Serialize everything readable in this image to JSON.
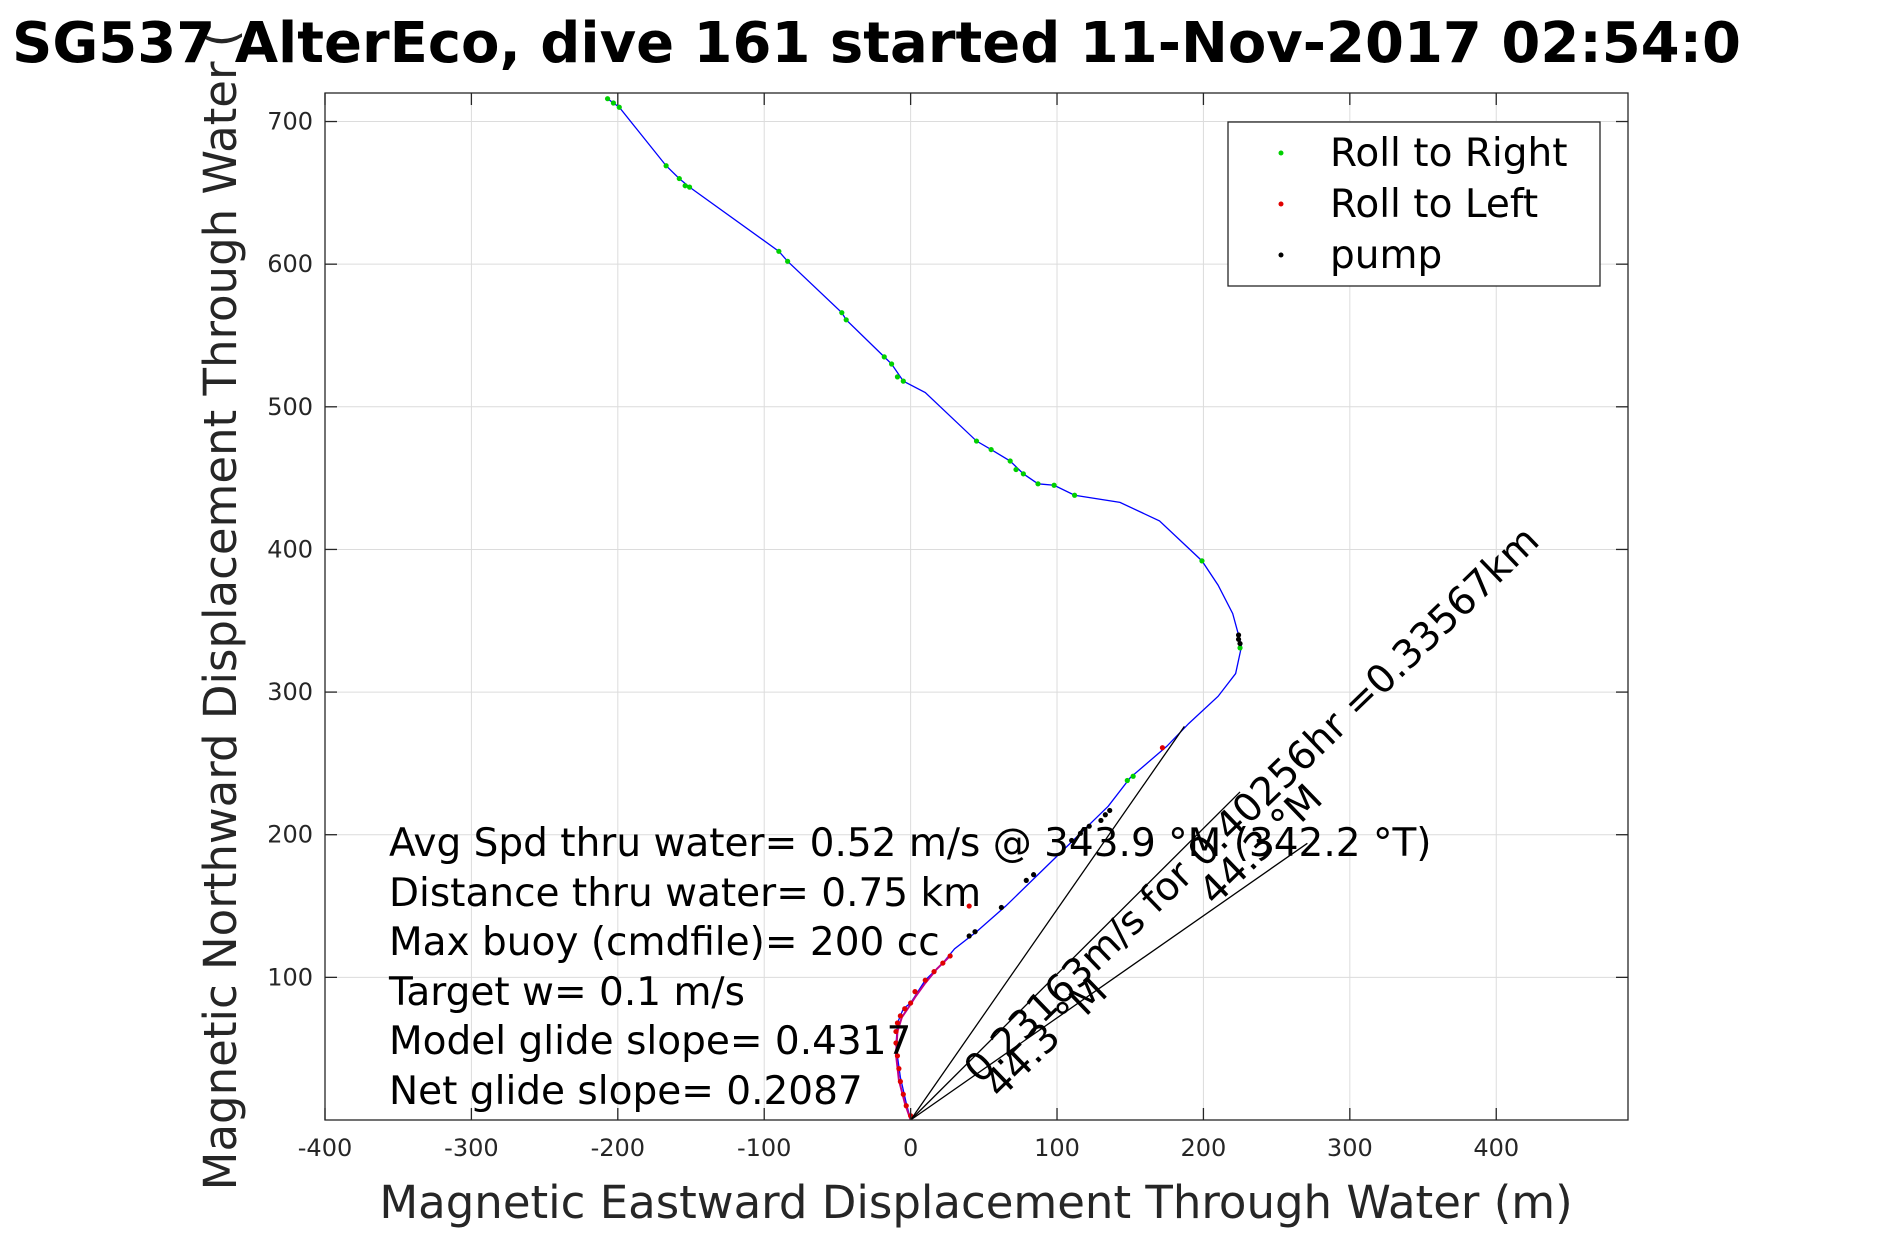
{
  "chart_data": {
    "type": "line",
    "title": "SG537 AlterEco, dive 161 started 11-Nov-2017 02:54:0",
    "xlabel": "Magnetic Eastward Displacement Through Water (m)",
    "ylabel": "Magnetic Northward Displacement Through Water (",
    "xlim": [
      -400,
      490
    ],
    "ylim": [
      0,
      720
    ],
    "xticks": [
      -400,
      -300,
      -200,
      -100,
      0,
      100,
      200,
      300,
      400
    ],
    "yticks": [
      100,
      200,
      300,
      400,
      500,
      600,
      700
    ],
    "grid": true,
    "legend_position": "top-right",
    "colors": {
      "track": "#0000ff",
      "roll_right": "#00d000",
      "roll_left": "#e00000",
      "pump": "#000000",
      "magenta": "#c0008a",
      "vectors": "#000000"
    },
    "series": [
      {
        "name": "Roll to Right",
        "x": [
          -207,
          -203,
          -199,
          -167,
          -158,
          -154,
          -151,
          -90,
          -84,
          -47,
          -44,
          -18,
          -13,
          -9,
          -5,
          45,
          55,
          68,
          72,
          77,
          87,
          98,
          112,
          148,
          152,
          199,
          225
        ],
        "y": [
          716,
          713,
          710,
          669,
          660,
          655,
          654,
          609,
          602,
          566,
          561,
          535,
          530,
          521,
          518,
          476,
          470,
          462,
          456,
          453,
          446,
          445,
          438,
          238,
          241,
          392,
          331
        ]
      },
      {
        "name": "Roll to Left",
        "x": [
          0,
          -3,
          -5,
          -7,
          -8,
          -9,
          -10,
          -10,
          -9,
          -7,
          -4,
          0,
          3,
          10,
          16,
          22,
          27,
          172,
          40
        ],
        "y": [
          3,
          10,
          18,
          27,
          36,
          45,
          54,
          62,
          68,
          73,
          78,
          82,
          90,
          98,
          104,
          110,
          115,
          261,
          150
        ]
      },
      {
        "name": "pump",
        "x": [
          224,
          224,
          225,
          130,
          133,
          136,
          122,
          116,
          110,
          84,
          79,
          44,
          40,
          62
        ],
        "y": [
          340,
          337,
          334,
          210,
          214,
          217,
          206,
          201,
          196,
          172,
          168,
          132,
          129,
          149
        ]
      }
    ],
    "track": {
      "name": "track",
      "x": [
        0,
        -3,
        -7,
        -10,
        -9,
        -5,
        0,
        10,
        22,
        30,
        45,
        65,
        85,
        110,
        125,
        135,
        150,
        175,
        190,
        210,
        222,
        226,
        224,
        220,
        210,
        199,
        170,
        143,
        112,
        98,
        87,
        77,
        68,
        55,
        45,
        10,
        -5,
        -13,
        -18,
        -44,
        -47,
        -84,
        -90,
        -151,
        -158,
        -167,
        -199,
        -203,
        -207
      ],
      "y": [
        0,
        12,
        30,
        52,
        68,
        78,
        82,
        98,
        110,
        120,
        132,
        150,
        170,
        195,
        210,
        220,
        240,
        262,
        278,
        297,
        313,
        332,
        340,
        355,
        375,
        392,
        420,
        433,
        438,
        445,
        446,
        453,
        462,
        470,
        476,
        510,
        518,
        530,
        535,
        561,
        566,
        602,
        609,
        654,
        660,
        669,
        710,
        713,
        716
      ]
    },
    "magenta_path": {
      "x": [
        0,
        -4,
        -8,
        -10,
        -9,
        -6,
        -2,
        3,
        10,
        18,
        27
      ],
      "y": [
        0,
        12,
        28,
        46,
        62,
        72,
        78,
        86,
        96,
        106,
        115
      ]
    },
    "vectors": [
      {
        "from": [
          0,
          0
        ],
        "to": [
          187,
          276
        ]
      },
      {
        "from": [
          0,
          0
        ],
        "to": [
          271,
          194
        ]
      },
      {
        "from": [
          0,
          0
        ],
        "to": [
          225,
          230
        ]
      }
    ],
    "annotations": [
      "Avg Spd thru water=  0.52 m/s @ 343.9 °M (342.2 °T)",
      "Distance thru water=  0.75 km",
      "Max buoy (cmdfile)= 200 cc",
      "Target w= 0.1 m/s",
      "Model glide slope= 0.4317",
      "Net glide slope= 0.2087"
    ],
    "rotated_labels": [
      "0.23163m/s for 0.40256hr =0.33567km",
      "44.3 °M",
      "44.3 °M"
    ]
  }
}
